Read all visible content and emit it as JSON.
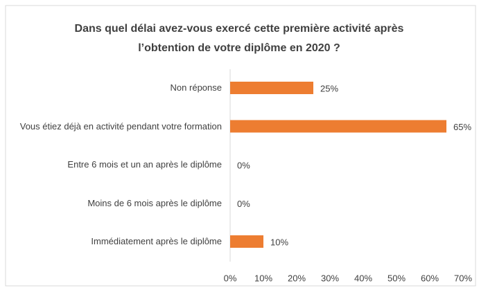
{
  "chart_data": {
    "type": "barh",
    "title": "Dans quel délai avez-vous exercé cette première activité après l’obtention de votre diplôme en 2020 ?",
    "categories": [
      "Non réponse",
      "Vous étiez déjà en activité pendant votre formation",
      "Entre 6 mois et un an après le diplôme",
      "Moins de 6 mois après le diplôme",
      "Immédiatement après le diplôme"
    ],
    "values": [
      25,
      65,
      0,
      0,
      10
    ],
    "value_labels": [
      "25%",
      "65%",
      "0%",
      "0%",
      "10%"
    ],
    "color": "#ed7d31",
    "xlim": [
      0,
      70
    ],
    "xticks": [
      {
        "value": 0,
        "label": "0%"
      },
      {
        "value": 10,
        "label": "10%"
      },
      {
        "value": 20,
        "label": "20%"
      },
      {
        "value": 30,
        "label": "30%"
      },
      {
        "value": 40,
        "label": "40%"
      },
      {
        "value": 50,
        "label": "50%"
      },
      {
        "value": 60,
        "label": "60%"
      },
      {
        "value": 70,
        "label": "70%"
      }
    ],
    "grid": false
  }
}
